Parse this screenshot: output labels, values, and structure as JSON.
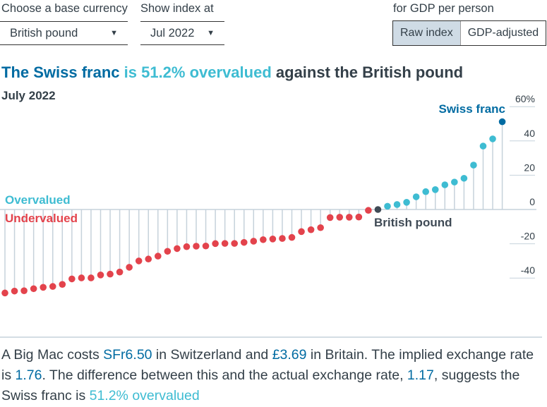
{
  "controls": {
    "base_currency": {
      "label": "Choose a base currency",
      "value": "British pound"
    },
    "show_index": {
      "label": "Show index at",
      "value": "Jul 2022"
    },
    "adjust": {
      "label": "for GDP per person",
      "options": [
        "Raw index",
        "GDP-adjusted"
      ],
      "selected": "Raw index"
    }
  },
  "headline": {
    "part1": "The Swiss franc",
    "part2": "is 51.2% overvalued",
    "part3": "against the British pound"
  },
  "date": "July 2022",
  "colors": {
    "undervalued": "#e3434c",
    "overvalued": "#3ebcd2",
    "highlight": "#006ba2",
    "base": "#3f4a55",
    "grid": "#c6d2db"
  },
  "chart_data": {
    "type": "lollipop",
    "ylim": [
      -50,
      60
    ],
    "yticks": [
      60,
      40,
      20,
      0,
      -20,
      -40
    ],
    "ytick_labels": [
      "60%",
      "40",
      "20",
      "0",
      "-20",
      "-40"
    ],
    "grid": true,
    "annotations": {
      "overvalued": "Overvalued",
      "undervalued": "Undervalued",
      "highlight": "Swiss franc",
      "base": "British pound"
    },
    "values": [
      -48.7,
      -47.6,
      -47.4,
      -46.2,
      -45.4,
      -44.9,
      -43.7,
      -40.5,
      -39.9,
      -39.9,
      -38.2,
      -37.7,
      -36.5,
      -33.7,
      -30.0,
      -28.9,
      -27.2,
      -24.4,
      -22.8,
      -21.7,
      -21.4,
      -21.3,
      -19.9,
      -19.8,
      -19.8,
      -19.2,
      -18.5,
      -17.6,
      -17.2,
      -16.9,
      -16.3,
      -12.9,
      -11.8,
      -10.6,
      -4.7,
      -4.5,
      -4.5,
      -4.4,
      -0.5,
      0,
      1.9,
      2.9,
      4.2,
      7.4,
      10.4,
      11.6,
      14.4,
      16.0,
      18.2,
      25.9,
      37.0,
      41.2,
      51.2
    ],
    "base_index": 39,
    "highlight_index": 52
  },
  "description": {
    "t1": "A Big Mac costs ",
    "v1": "SFr6.50",
    "t2": " in Switzerland and ",
    "v2": "£3.69",
    "t3": " in Britain. The implied exchange rate is ",
    "v3": "1.76",
    "t4": ". The difference between this and the actual exchange rate, ",
    "v4": "1.17",
    "t5": ", suggests the Swiss franc is ",
    "v5": "51.2% overvalued"
  }
}
